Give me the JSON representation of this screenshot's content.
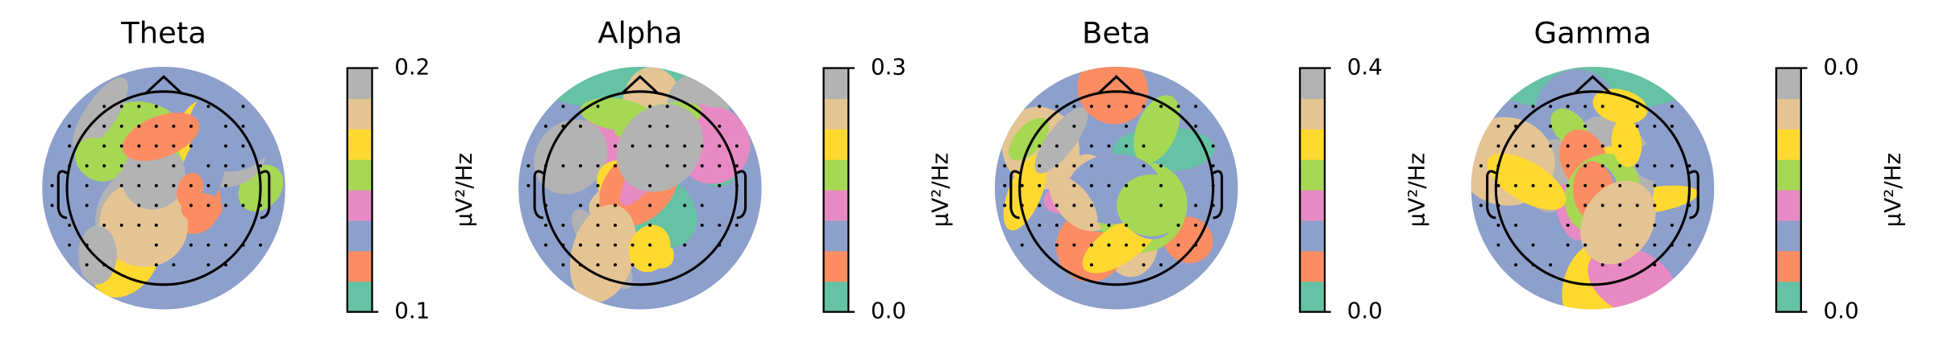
{
  "chart_data": [
    {
      "type": "topomap",
      "title": "Theta",
      "colorbar_label": "µV²/Hz",
      "ylim": [
        0.1,
        0.2
      ],
      "yticks": [
        0.1,
        0.2
      ],
      "colors": [
        "#66c2a5",
        "#fc8d62",
        "#8da0cb",
        "#e78ac3",
        "#a6d854",
        "#ffd92f",
        "#e5c494",
        "#b3b3b3"
      ]
    },
    {
      "type": "topomap",
      "title": "Alpha",
      "colorbar_label": "µV²/Hz",
      "ylim": [
        0,
        0.3
      ],
      "yticks": [
        {
          "value": 0,
          "label": "0.0"
        },
        0.3
      ],
      "colors": [
        "#66c2a5",
        "#fc8d62",
        "#8da0cb",
        "#e78ac3",
        "#a6d854",
        "#ffd92f",
        "#e5c494",
        "#b3b3b3"
      ]
    },
    {
      "type": "topomap",
      "title": "Beta",
      "colorbar_label": "µV²/Hz",
      "ylim": [
        0,
        0.4
      ],
      "yticks": [
        {
          "value": 0,
          "label": "0.0"
        },
        0.4
      ],
      "colors": [
        "#66c2a5",
        "#fc8d62",
        "#8da0cb",
        "#e78ac3",
        "#a6d854",
        "#ffd92f",
        "#e5c494",
        "#b3b3b3"
      ]
    },
    {
      "type": "topomap",
      "title": "Gamma",
      "colorbar_label": "µV²/Hz",
      "ylim": [
        0.01,
        0.04
      ],
      "yticks": [
        {
          "value": 0.01,
          "label": "0.0"
        },
        {
          "value": 0.04,
          "label": "0.0"
        }
      ],
      "colors": [
        "#66c2a5",
        "#fc8d62",
        "#8da0cb",
        "#e78ac3",
        "#a6d854",
        "#ffd92f",
        "#e5c494",
        "#b3b3b3"
      ]
    }
  ]
}
